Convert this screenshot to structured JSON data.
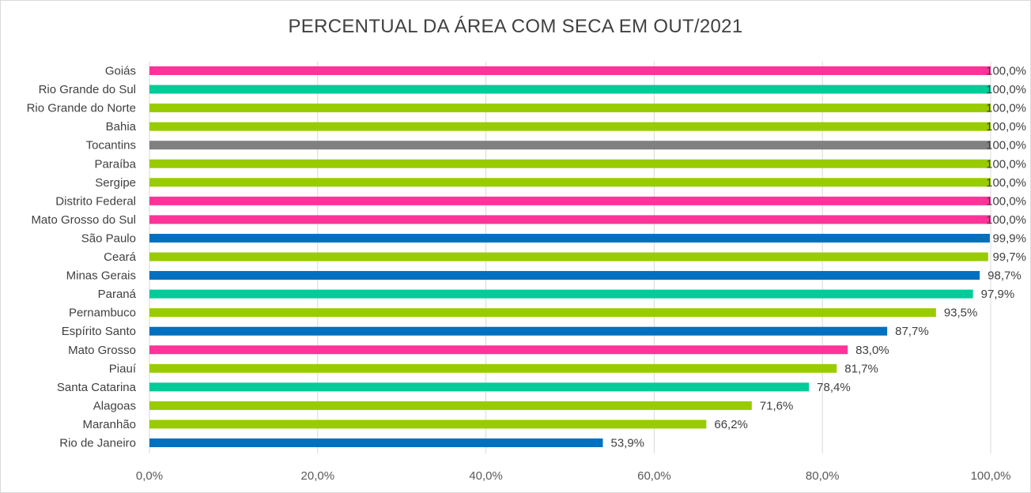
{
  "chart_data": {
    "type": "bar",
    "orientation": "horizontal",
    "title": "PERCENTUAL DA ÁREA COM SECA EM OUT/2021",
    "xlabel": "",
    "ylabel": "",
    "xlim": [
      0,
      100
    ],
    "grid": true,
    "legend": "none",
    "ticks": [
      "0,0%",
      "20,0%",
      "40,0%",
      "60,0%",
      "80,0%",
      "100,0%"
    ],
    "tick_values": [
      0,
      20,
      40,
      60,
      80,
      100
    ],
    "categories": [
      "Goiás",
      "Rio Grande do Sul",
      "Rio Grande do Norte",
      "Bahia",
      "Tocantins",
      "Paraíba",
      "Sergipe",
      "Distrito Federal",
      "Mato Grosso do Sul",
      "São Paulo",
      "Ceará",
      "Minas Gerais",
      "Paraná",
      "Pernambuco",
      "Espírito Santo",
      "Mato Grosso",
      "Piauí",
      "Santa Catarina",
      "Alagoas",
      "Maranhão",
      "Rio de Janeiro"
    ],
    "values": [
      100,
      100,
      100,
      100,
      100,
      100,
      100,
      100,
      100,
      99.9,
      99.7,
      98.7,
      97.9,
      93.5,
      87.7,
      83.0,
      81.7,
      78.4,
      71.6,
      66.2,
      53.9
    ],
    "value_labels": [
      "100,0%",
      "100,0%",
      "100,0%",
      "100,0%",
      "100,0%",
      "100,0%",
      "100,0%",
      "100,0%",
      "100,0%",
      "99,9%",
      "99,7%",
      "98,7%",
      "97,9%",
      "93,5%",
      "87,7%",
      "83,0%",
      "81,7%",
      "78,4%",
      "71,6%",
      "66,2%",
      "53,9%"
    ],
    "colors": [
      "#ff3399",
      "#00cc99",
      "#99cc00",
      "#99cc00",
      "#808080",
      "#99cc00",
      "#99cc00",
      "#ff3399",
      "#ff3399",
      "#0070c0",
      "#99cc00",
      "#0070c0",
      "#00cc99",
      "#99cc00",
      "#0070c0",
      "#ff3399",
      "#99cc00",
      "#00cc99",
      "#99cc00",
      "#99cc00",
      "#0070c0"
    ]
  }
}
